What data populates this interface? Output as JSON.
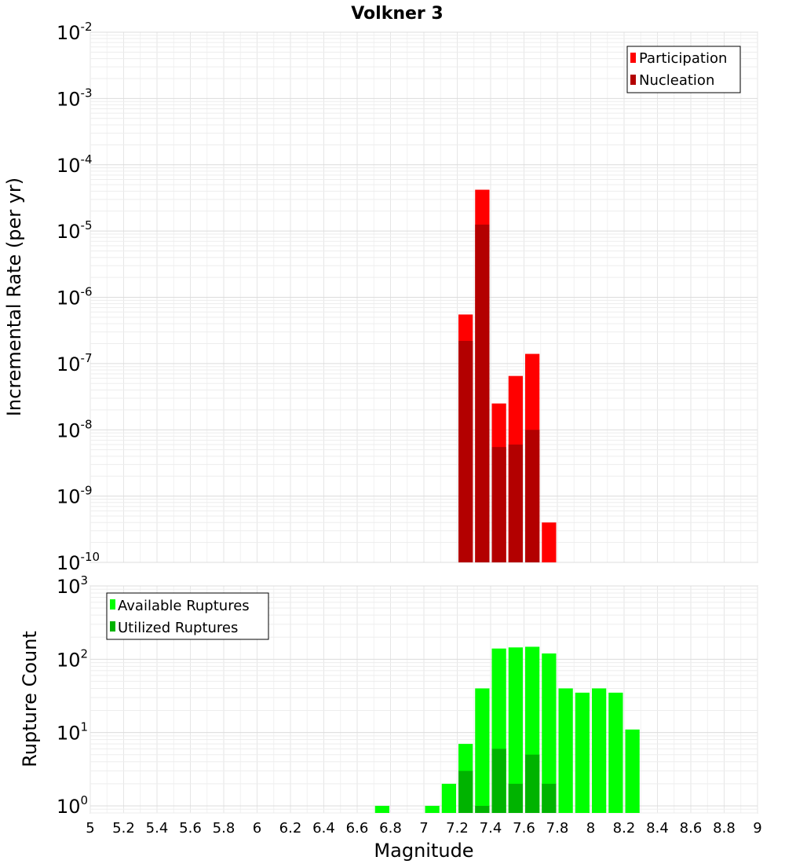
{
  "title": "Volkner 3",
  "chart_data": [
    {
      "type": "bar",
      "name": "incremental-rate",
      "ylabel": "Incremental Rate (per yr)",
      "yscale": "log",
      "ylim": [
        1e-10,
        0.01
      ],
      "xlim": [
        5,
        9
      ],
      "grid": true,
      "legend_position": "top-right",
      "y_ticks": [
        {
          "base": "10",
          "exp": "-10"
        },
        {
          "base": "10",
          "exp": "-9"
        },
        {
          "base": "10",
          "exp": "-8"
        },
        {
          "base": "10",
          "exp": "-7"
        },
        {
          "base": "10",
          "exp": "-6"
        },
        {
          "base": "10",
          "exp": "-5"
        },
        {
          "base": "10",
          "exp": "-4"
        },
        {
          "base": "10",
          "exp": "-3"
        },
        {
          "base": "10",
          "exp": "-2"
        }
      ],
      "series": [
        {
          "name": "Participation",
          "color": "#ff0000",
          "x": [
            7.25,
            7.35,
            7.45,
            7.55,
            7.65,
            7.75
          ],
          "values": [
            5.5e-07,
            4.2e-05,
            2.5e-08,
            6.5e-08,
            1.4e-07,
            4e-10
          ]
        },
        {
          "name": "Nucleation",
          "color": "#b30000",
          "x": [
            7.25,
            7.35,
            7.45,
            7.55,
            7.65,
            7.75
          ],
          "values": [
            2.2e-07,
            1.25e-05,
            5.5e-09,
            6e-09,
            1e-08,
            1e-10
          ]
        }
      ]
    },
    {
      "type": "bar",
      "name": "rupture-count",
      "ylabel": "Rupture Count",
      "xlabel": "Magnitude",
      "yscale": "log",
      "ylim": [
        0.8,
        1000
      ],
      "xlim": [
        5,
        9
      ],
      "grid": true,
      "legend_position": "top-left",
      "y_ticks": [
        {
          "base": "10",
          "exp": "0"
        },
        {
          "base": "10",
          "exp": "1"
        },
        {
          "base": "10",
          "exp": "2"
        },
        {
          "base": "10",
          "exp": "3"
        }
      ],
      "x_ticks": [
        "5",
        "5.2",
        "5.4",
        "5.6",
        "5.8",
        "6",
        "6.2",
        "6.4",
        "6.6",
        "6.8",
        "7",
        "7.2",
        "7.4",
        "7.6",
        "7.8",
        "8",
        "8.2",
        "8.4",
        "8.6",
        "8.8",
        "9"
      ],
      "series": [
        {
          "name": "Available Ruptures",
          "color": "#00ff00",
          "x": [
            6.75,
            7.05,
            7.15,
            7.25,
            7.35,
            7.45,
            7.55,
            7.65,
            7.75,
            7.85,
            7.95,
            8.05,
            8.15,
            8.25
          ],
          "values": [
            1,
            1,
            2,
            7,
            40,
            140,
            145,
            148,
            120,
            40,
            35,
            40,
            35,
            11
          ]
        },
        {
          "name": "Utilized Ruptures",
          "color": "#00b300",
          "x": [
            7.25,
            7.35,
            7.45,
            7.55,
            7.65,
            7.75
          ],
          "values": [
            3,
            1,
            6,
            2,
            5,
            2
          ]
        }
      ]
    }
  ]
}
